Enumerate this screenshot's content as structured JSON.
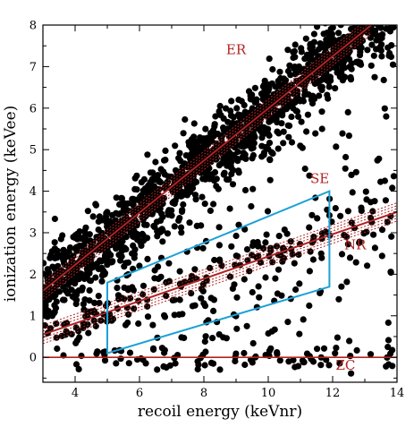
{
  "chart_data": {
    "type": "scatter",
    "title": "",
    "xlabel": "recoil energy (keVnr)",
    "ylabel": "ionization energy (keVee)",
    "xlim": [
      3,
      14
    ],
    "ylim": [
      -0.6,
      8
    ],
    "xticks": [
      4,
      6,
      8,
      10,
      12,
      14
    ],
    "yticks": [
      0,
      1,
      2,
      3,
      4,
      5,
      6,
      7,
      8
    ],
    "grid": false,
    "bands": [
      {
        "label": "ER",
        "x": [
          3,
          13.2
        ],
        "y": [
          1.6,
          8.0
        ]
      },
      {
        "label": "NR",
        "x": [
          3,
          14
        ],
        "y": [
          0.55,
          3.5
        ]
      },
      {
        "label": "ZC",
        "x": [
          3,
          14
        ],
        "y": [
          0,
          0
        ]
      }
    ],
    "annotations": [
      "ER",
      "SE",
      "NR",
      "ZC"
    ],
    "signal_region": {
      "color": "#1ba1d6",
      "vertices": [
        [
          5.0,
          0.1
        ],
        [
          5.0,
          1.8
        ],
        [
          11.9,
          4.0
        ],
        [
          11.9,
          1.7
        ]
      ]
    },
    "colors": {
      "points": "#000000",
      "bands": "#b22222",
      "zero_line": "#b22222",
      "box": "#1ba1d6"
    }
  }
}
